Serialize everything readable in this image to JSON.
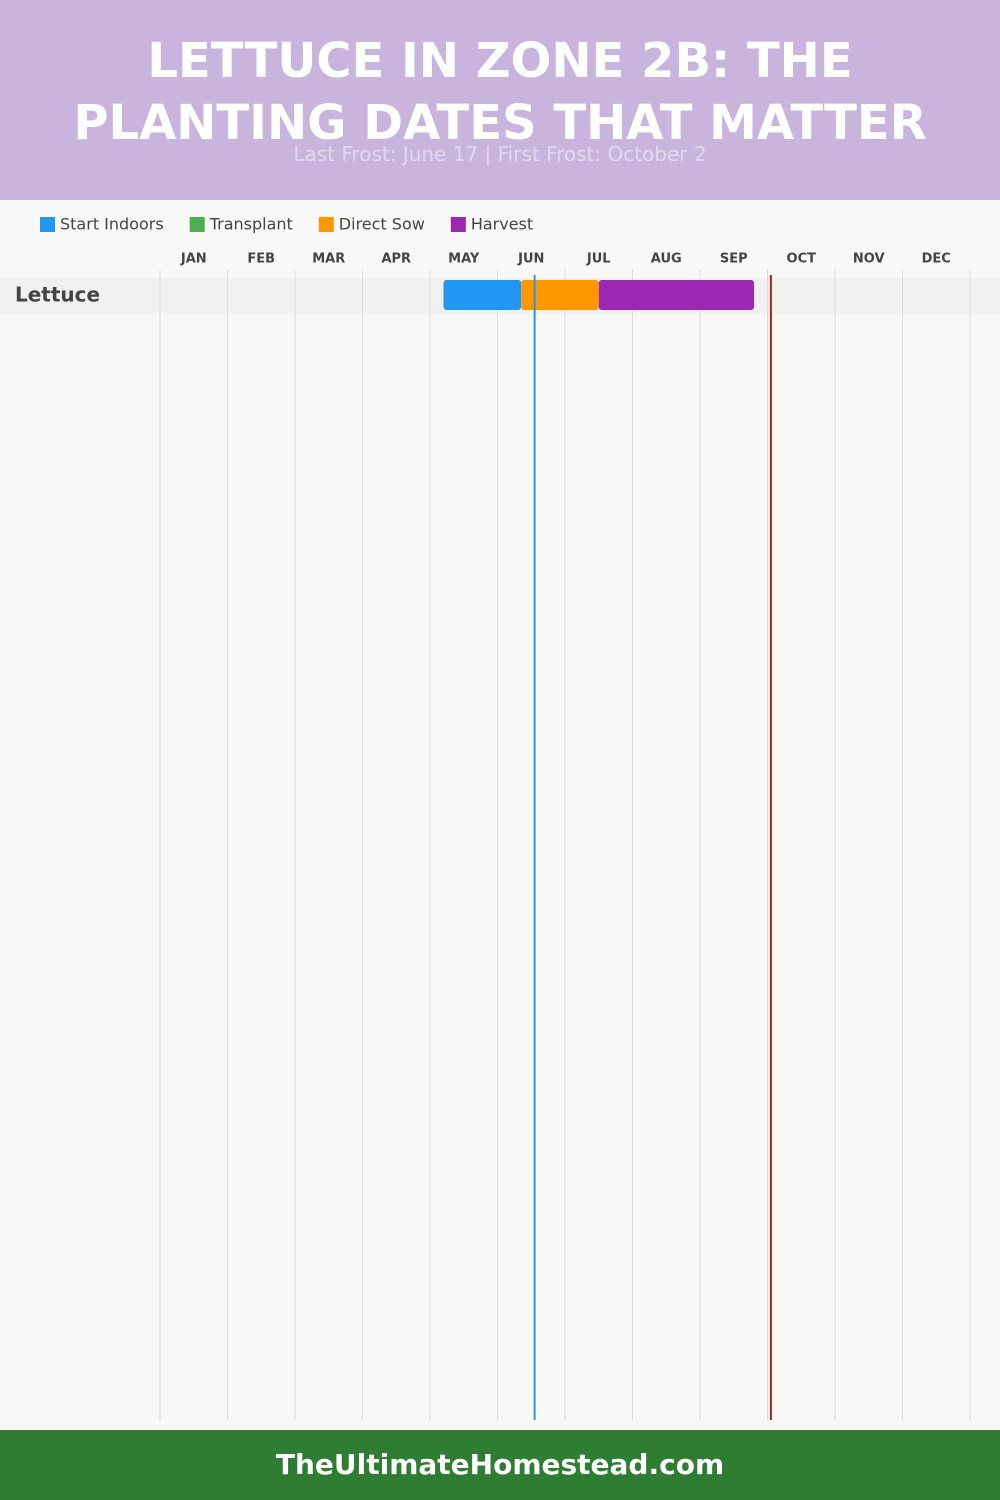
{
  "chart_data": {
    "type": "gantt",
    "title": "LETTUCE IN ZONE 2B: THE PLANTING DATES THAT MATTER",
    "subtitle": "Last Frost: June 17 | First Frost: October 2",
    "months": [
      "JAN",
      "FEB",
      "MAR",
      "APR",
      "MAY",
      "JUN",
      "JUL",
      "AUG",
      "SEP",
      "OCT",
      "NOV",
      "DEC"
    ],
    "xlim": [
      0,
      12
    ],
    "categories": [
      "Lettuce"
    ],
    "series": [
      {
        "name": "Start Indoors",
        "color": "#2196f3",
        "values": [
          [
            4.2,
            5.35
          ]
        ]
      },
      {
        "name": "Transplant",
        "color": "#4caf50",
        "values": [
          null
        ]
      },
      {
        "name": "Direct Sow",
        "color": "#ff9800",
        "values": [
          [
            5.35,
            6.5
          ]
        ]
      },
      {
        "name": "Harvest",
        "color": "#9c27b0",
        "values": [
          [
            6.5,
            8.8
          ]
        ]
      }
    ],
    "frost_lines": [
      {
        "value": 5.55,
        "color": "#2196f3"
      },
      {
        "value": 9.05,
        "color": "#b71c1c"
      }
    ],
    "grid": true,
    "footer": "TheUltimateHomestead.com"
  }
}
